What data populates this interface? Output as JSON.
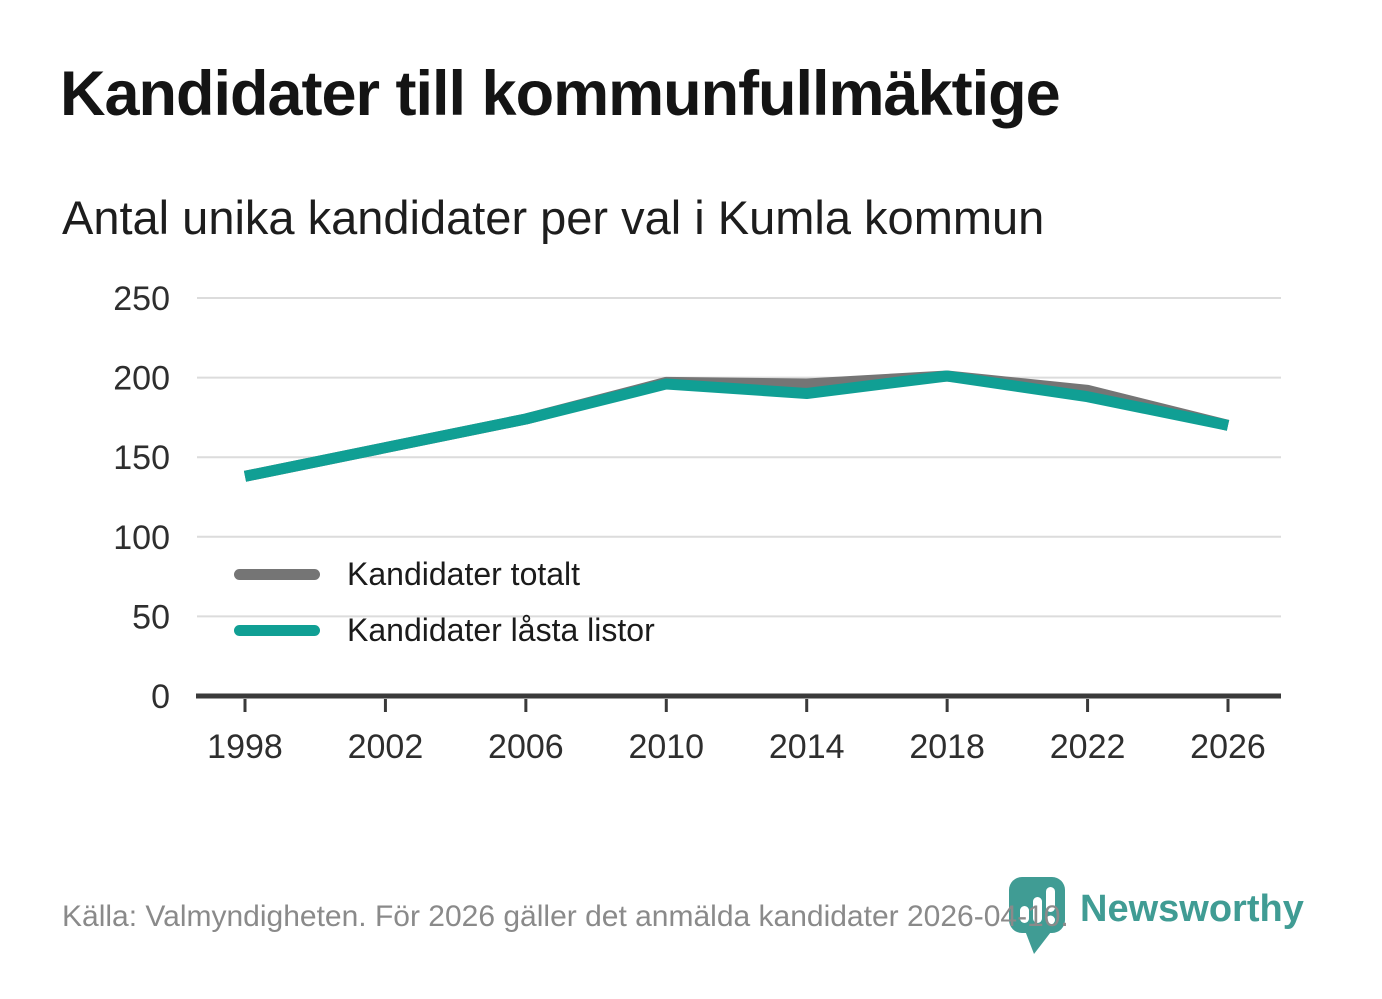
{
  "title": "Kandidater till kommunfullmäktige",
  "subtitle": "Antal unika kandidater per val i Kumla kommun",
  "legend": [
    {
      "label": "Kandidater totalt"
    },
    {
      "label": "Kandidater låsta listor"
    }
  ],
  "footer": {
    "source": "Källa: Valmyndigheten. För 2026 gäller det anmälda kandidater 2026-04-10.",
    "brand": "Newsworthy"
  },
  "colors": {
    "total_line": "#757575",
    "locked_line": "#109f94",
    "grid": "#dcdcdc",
    "axis": "#3a3a3a",
    "tick_label": "#2e2e2e",
    "title_text": "#141414",
    "footer_text": "#8a8a8a",
    "brand_teal": "#409c94"
  },
  "chart_data": {
    "type": "line",
    "x": [
      1998,
      2002,
      2006,
      2010,
      2014,
      2018,
      2022,
      2026
    ],
    "series": [
      {
        "name": "Kandidater totalt",
        "color": "#757575",
        "values": [
          138,
          156,
          174,
          197,
          196,
          201,
          192,
          170
        ]
      },
      {
        "name": "Kandidater låsta listor",
        "color": "#109f94",
        "values": [
          138,
          156,
          174,
          196,
          190,
          201,
          188,
          170
        ]
      }
    ],
    "ylim": [
      0,
      250
    ],
    "yticks": [
      0,
      50,
      100,
      150,
      200,
      250
    ],
    "grid": true,
    "legend_position": "inside-bottom-left"
  }
}
